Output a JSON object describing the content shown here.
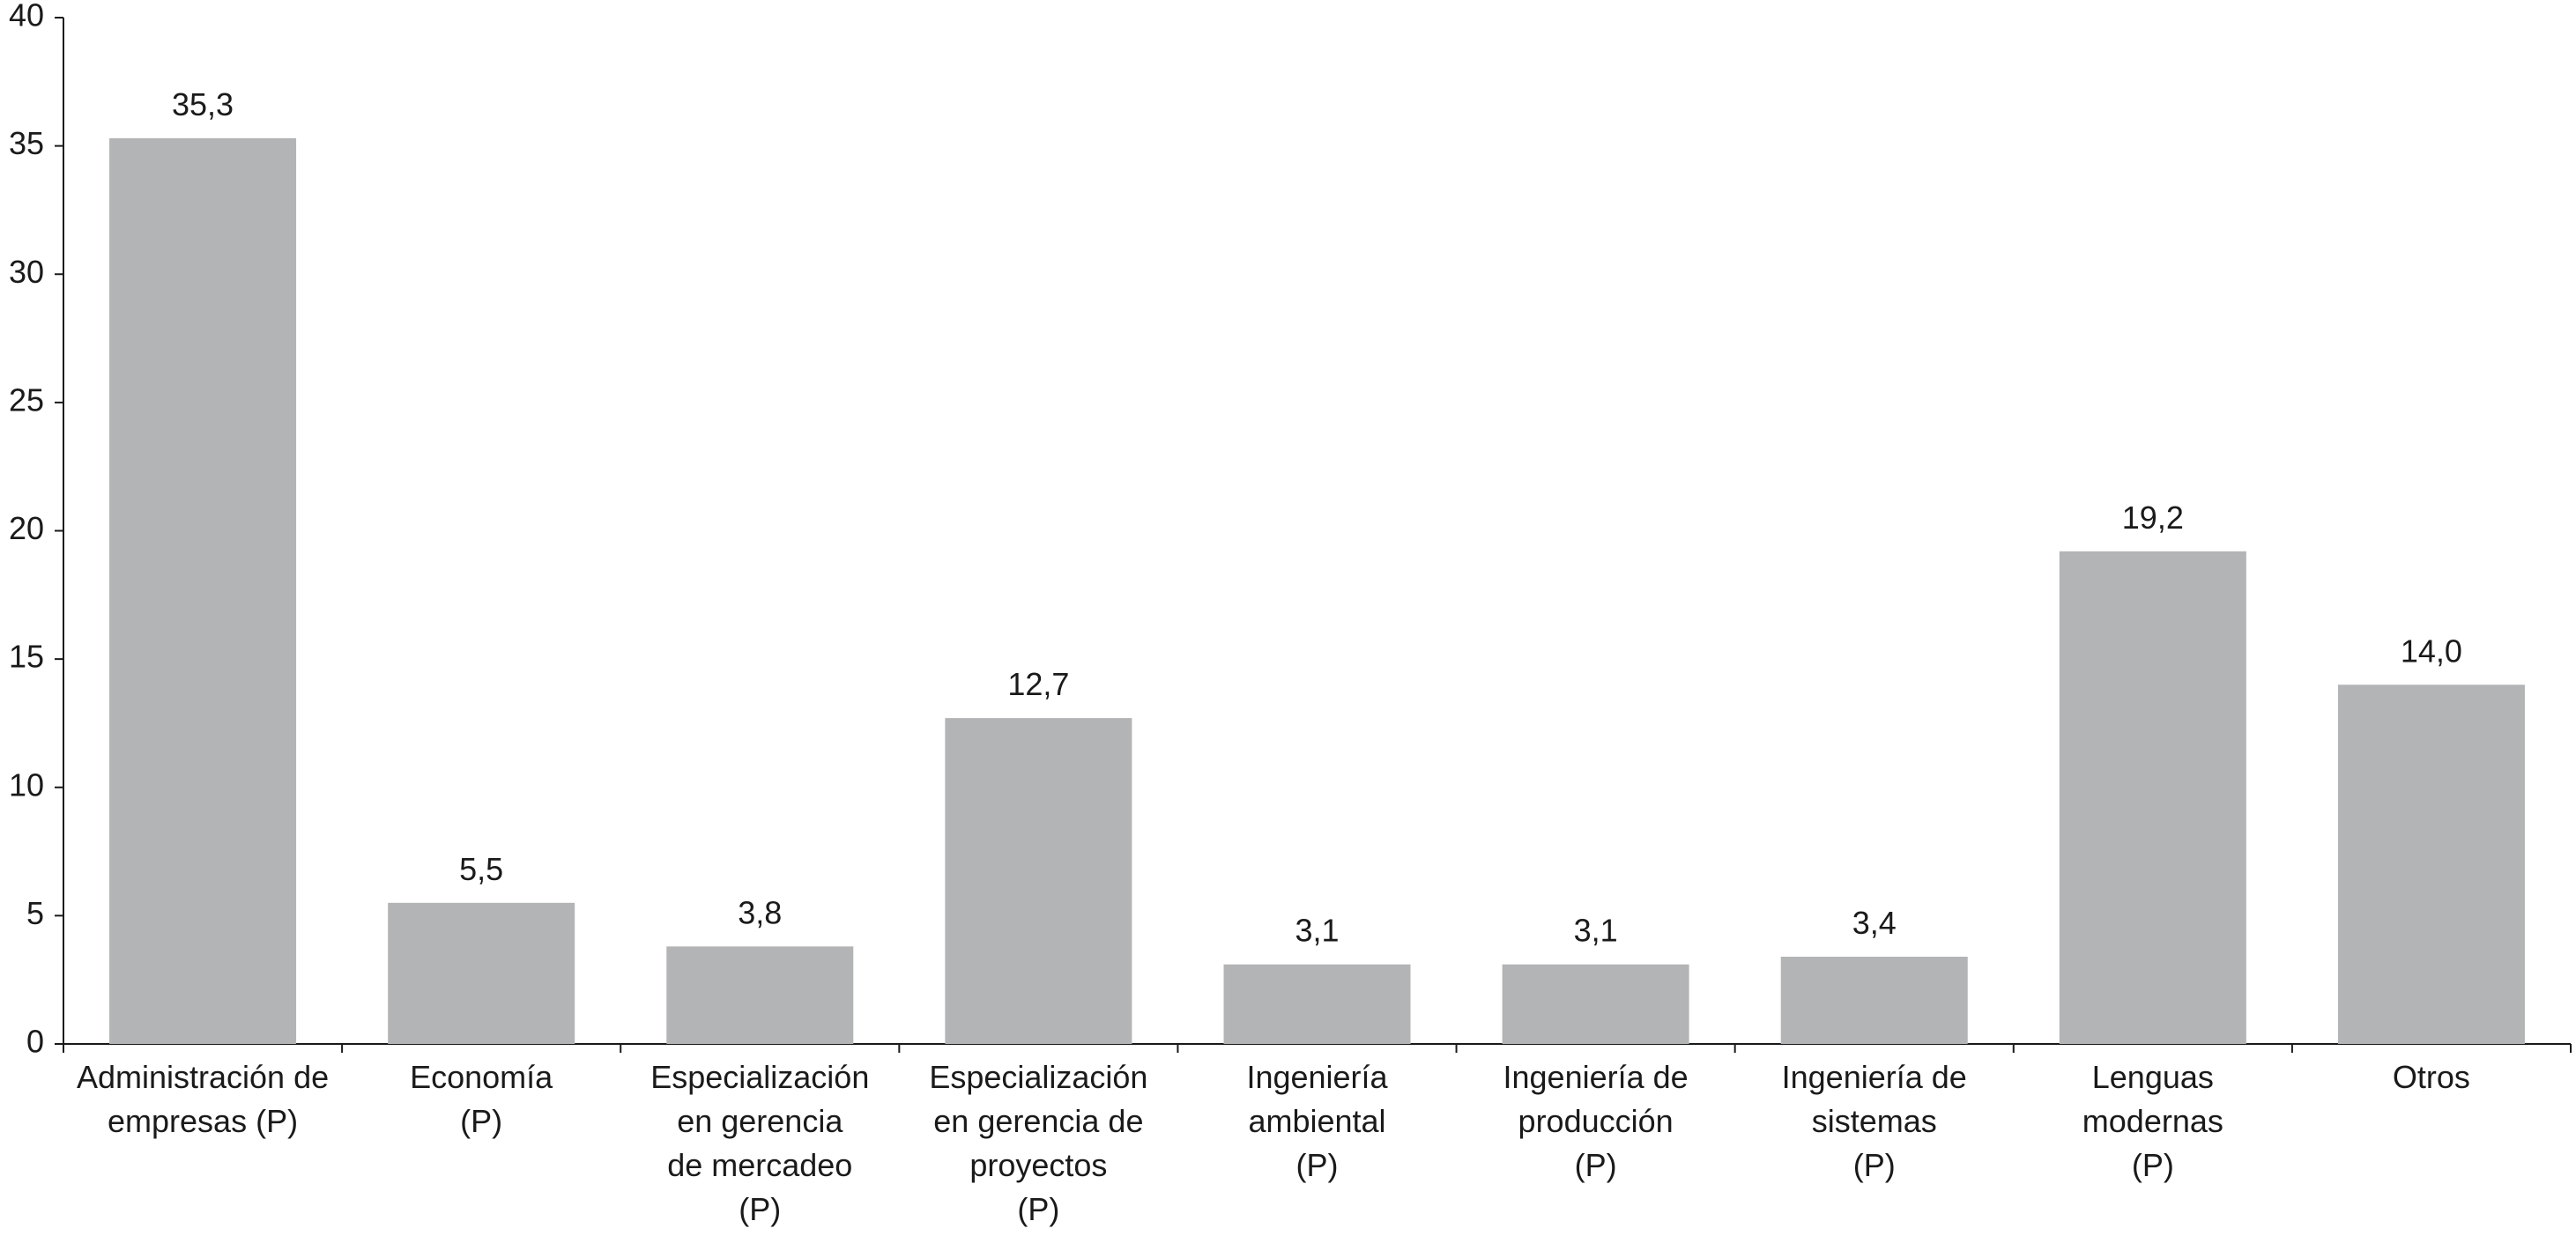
{
  "chart_data": {
    "type": "bar",
    "categories": [
      [
        "Administración de",
        "empresas (P)"
      ],
      [
        "Economía",
        "(P)"
      ],
      [
        "Especialización",
        "en gerencia",
        "de mercadeo",
        "(P)"
      ],
      [
        "Especialización",
        "en gerencia de",
        "proyectos",
        "(P)"
      ],
      [
        "Ingeniería",
        "ambiental",
        "(P)"
      ],
      [
        "Ingeniería de",
        "producción",
        "(P)"
      ],
      [
        "Ingeniería de",
        "sistemas",
        "(P)"
      ],
      [
        "Lenguas",
        "modernas",
        "(P)"
      ],
      [
        "Otros"
      ]
    ],
    "values": [
      35.3,
      5.5,
      3.8,
      12.7,
      3.1,
      3.1,
      3.4,
      19.2,
      14.0
    ],
    "value_labels": [
      "35,3",
      "5,5",
      "3,8",
      "12,7",
      "3,1",
      "3,1",
      "3,4",
      "19,2",
      "14,0"
    ],
    "yticks": [
      0,
      5,
      10,
      15,
      20,
      25,
      30,
      35,
      40
    ],
    "ylim": [
      0,
      40
    ],
    "title": "",
    "xlabel": "",
    "ylabel": "",
    "grid": false,
    "legend": "none",
    "colors": {
      "bar": "#b3b4b6",
      "axis": "#1a1a1a",
      "text": "#1a1a1a"
    }
  }
}
